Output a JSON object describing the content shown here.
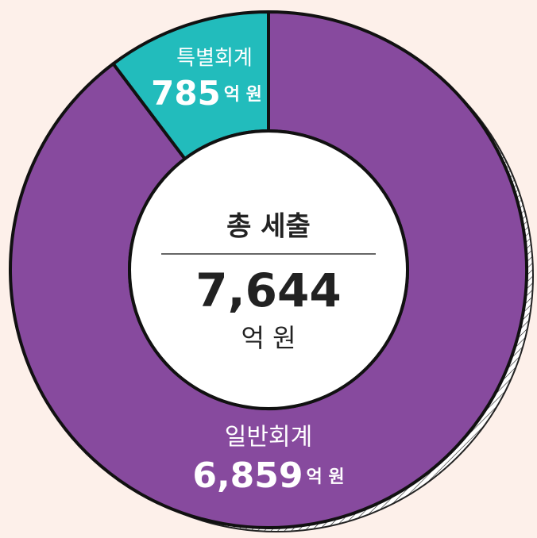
{
  "chart_data": {
    "type": "donut",
    "categories": [
      "일반회계",
      "특별회계"
    ],
    "values": [
      6859,
      785
    ],
    "value_labels": [
      "6,859",
      "785"
    ],
    "unit": "억 원",
    "colors": [
      "#874a9e",
      "#22bcbc"
    ],
    "center": {
      "title": "총 세출",
      "total": "7,644"
    }
  }
}
